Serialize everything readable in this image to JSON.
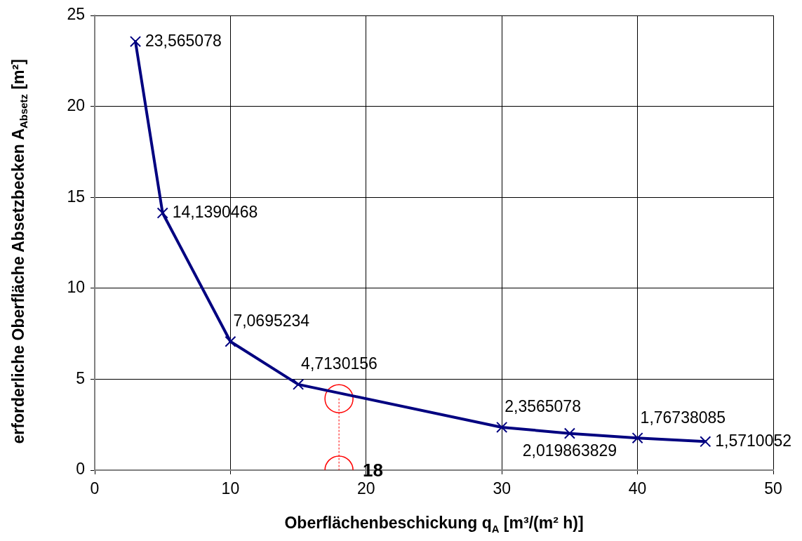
{
  "chart_data": {
    "type": "line",
    "xlabel": "Oberflächenbeschickung q$_{A}$ [m³/(m² h)]",
    "ylabel": "erforderliche Oberfläche Absetzbecken A$_{Absetz}$ [m²]",
    "xlim": [
      0,
      50
    ],
    "xticks": [
      0,
      10,
      20,
      30,
      40,
      50
    ],
    "ylim": [
      0,
      25
    ],
    "yticks": [
      0,
      5,
      10,
      15,
      20,
      25
    ],
    "grid": true,
    "legend": false,
    "series": [
      {
        "color": "#000080",
        "marker": "cross",
        "x": [
          3,
          5,
          10,
          15,
          30,
          35,
          40,
          45
        ],
        "values": [
          23.565078,
          14.1390468,
          7.0695234,
          4.7130156,
          2.3565078,
          2.019863829,
          1.76738085,
          1.5710052
        ],
        "value_labels": [
          "23,565078",
          "14,1390468",
          "7,0695234",
          "4,7130156",
          "2,3565078",
          "2,019863829",
          "1,76738085",
          "1,5710052"
        ]
      },
      {
        "color": "#ff0000",
        "marker": "circle",
        "line_style": "dotted",
        "x": [
          18,
          18
        ],
        "values": [
          3.93,
          0
        ]
      }
    ],
    "annotations": [
      {
        "text": "18",
        "x": 18,
        "y": 0
      }
    ]
  }
}
